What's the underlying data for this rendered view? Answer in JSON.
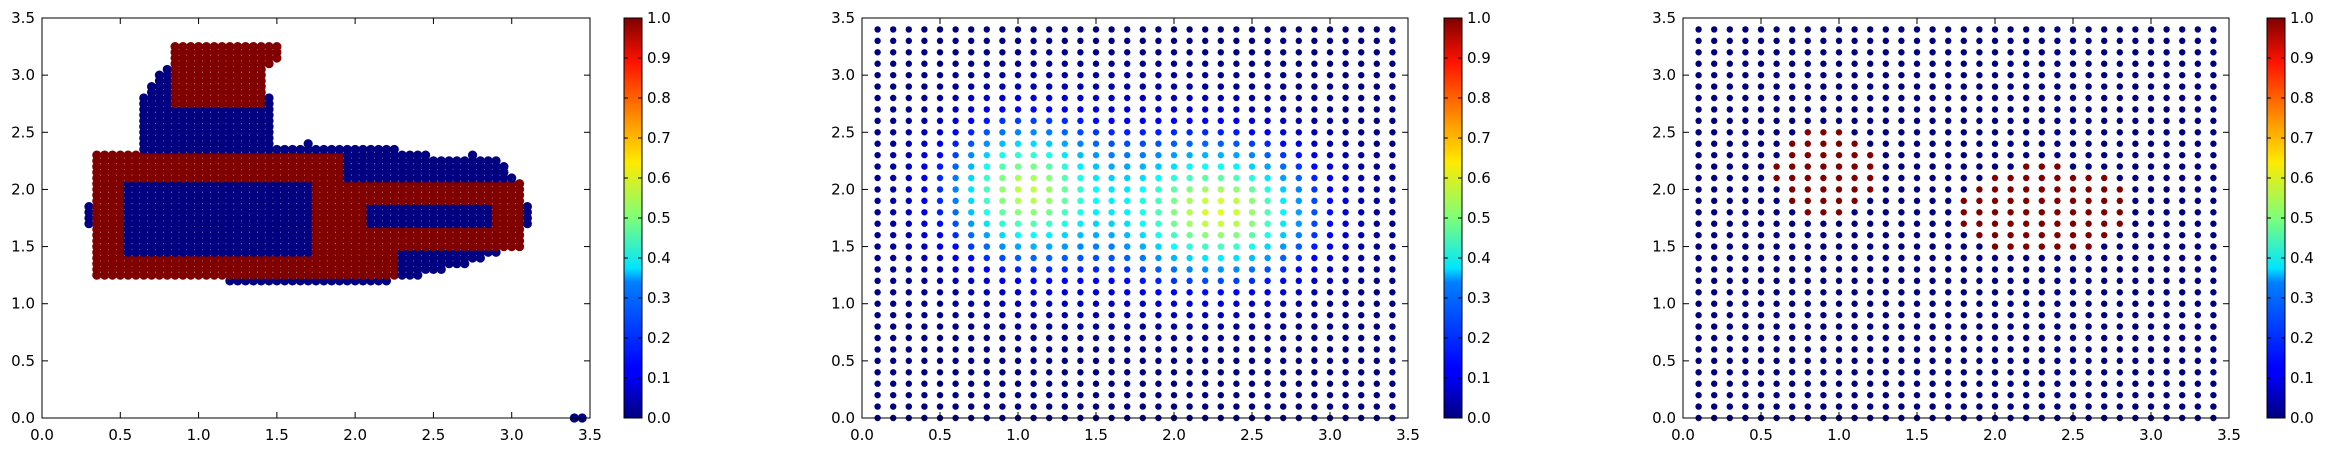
{
  "figure": {
    "panel_count": 3
  },
  "chart_data": [
    {
      "type": "scatter",
      "title": "",
      "xlabel": "",
      "ylabel": "",
      "xlim": [
        0.0,
        3.5
      ],
      "ylim": [
        0.0,
        3.5
      ],
      "xticks": [
        "0.0",
        "0.5",
        "1.0",
        "1.5",
        "2.0",
        "2.5",
        "3.0",
        "3.5"
      ],
      "yticks": [
        "0.0",
        "0.5",
        "1.0",
        "1.5",
        "2.0",
        "2.5",
        "3.0",
        "3.5"
      ],
      "grid": false,
      "colormap": "jet",
      "colorbar": {
        "range": [
          0.0,
          1.0
        ],
        "ticks": [
          "0.0",
          "0.1",
          "0.2",
          "0.3",
          "0.4",
          "0.5",
          "0.6",
          "0.7",
          "0.8",
          "0.9",
          "1.0"
        ]
      },
      "point_spacing": 0.05,
      "regions": [
        {
          "shape": "ellipse",
          "cx": 1.7,
          "cy": 1.78,
          "rx": 1.42,
          "ry": 0.62,
          "value": 0
        },
        {
          "shape": "ellipse",
          "cx": 1.05,
          "cy": 2.55,
          "rx": 0.45,
          "ry": 0.62,
          "value": 0
        },
        {
          "shape": "ellipse",
          "cx": 2.75,
          "cy": 1.95,
          "rx": 0.3,
          "ry": 0.35,
          "value": 0
        },
        {
          "shape": "rect",
          "x0": 0.82,
          "x1": 1.45,
          "y0": 2.72,
          "y1": 3.27,
          "value": 1
        },
        {
          "shape": "ellipse",
          "cx": 1.42,
          "cy": 3.18,
          "rx": 0.12,
          "ry": 0.1,
          "value": 1
        },
        {
          "shape": "frame",
          "x0": 0.32,
          "x1": 1.95,
          "y0": 1.22,
          "y1": 2.32,
          "thickness": 0.22,
          "value": 1
        },
        {
          "shape": "frame",
          "x0": 1.88,
          "x1": 3.05,
          "y0": 1.48,
          "y1": 2.07,
          "thickness": 0.18,
          "value": 1
        },
        {
          "shape": "rect",
          "x0": 1.88,
          "x1": 2.25,
          "y0": 1.22,
          "y1": 1.7,
          "value": 1
        }
      ],
      "outlier_points": [
        {
          "x": 3.4,
          "y": 0.0,
          "value": 0
        },
        {
          "x": 3.45,
          "y": 0.0,
          "value": 0
        }
      ]
    },
    {
      "type": "scatter",
      "title": "",
      "xlabel": "",
      "ylabel": "",
      "xlim": [
        0.0,
        3.5
      ],
      "ylim": [
        0.0,
        3.5
      ],
      "xticks": [
        "0.0",
        "0.5",
        "1.0",
        "1.5",
        "2.0",
        "2.5",
        "3.0",
        "3.5"
      ],
      "yticks": [
        "0.0",
        "0.5",
        "1.0",
        "1.5",
        "2.0",
        "2.5",
        "3.0",
        "3.5"
      ],
      "grid": false,
      "colormap": "jet",
      "colorbar": {
        "range": [
          0.0,
          1.0
        ],
        "ticks": [
          "0.0",
          "0.1",
          "0.2",
          "0.3",
          "0.4",
          "0.5",
          "0.6",
          "0.7",
          "0.8",
          "0.9",
          "1.0"
        ]
      },
      "grid_points": {
        "x_start": 0.1,
        "x_end": 3.4,
        "x_step": 0.1,
        "y_start": 0.0,
        "y_end": 3.4,
        "y_step": 0.1
      },
      "field_components": [
        {
          "cx": 2.35,
          "cy": 1.8,
          "sx": 0.55,
          "sy": 0.55,
          "amplitude": 0.48
        },
        {
          "cx": 1.0,
          "cy": 2.0,
          "sx": 0.45,
          "sy": 0.55,
          "amplitude": 0.42
        },
        {
          "cx": 1.6,
          "cy": 1.9,
          "sx": 0.9,
          "sy": 0.75,
          "amplitude": 0.22
        }
      ]
    },
    {
      "type": "scatter",
      "title": "",
      "xlabel": "",
      "ylabel": "",
      "xlim": [
        0.0,
        3.5
      ],
      "ylim": [
        0.0,
        3.5
      ],
      "xticks": [
        "0.0",
        "0.5",
        "1.0",
        "1.5",
        "2.0",
        "2.5",
        "3.0",
        "3.5"
      ],
      "yticks": [
        "0.0",
        "0.5",
        "1.0",
        "1.5",
        "2.0",
        "2.5",
        "3.0",
        "3.5"
      ],
      "grid": false,
      "colormap": "jet",
      "colorbar": {
        "range": [
          0.0,
          1.0
        ],
        "ticks": [
          "0.0",
          "0.1",
          "0.2",
          "0.3",
          "0.4",
          "0.5",
          "0.6",
          "0.7",
          "0.8",
          "0.9",
          "1.0"
        ]
      },
      "grid_points": {
        "x_start": 0.1,
        "x_end": 3.4,
        "x_step": 0.1,
        "y_start": 0.0,
        "y_end": 3.4,
        "y_step": 0.1
      },
      "hot_regions": [
        {
          "cx": 0.92,
          "cy": 2.15,
          "rx": 0.33,
          "ry": 0.4,
          "value": 1
        },
        {
          "cx": 2.32,
          "cy": 1.82,
          "rx": 0.55,
          "ry": 0.4,
          "value": 1
        }
      ]
    }
  ]
}
